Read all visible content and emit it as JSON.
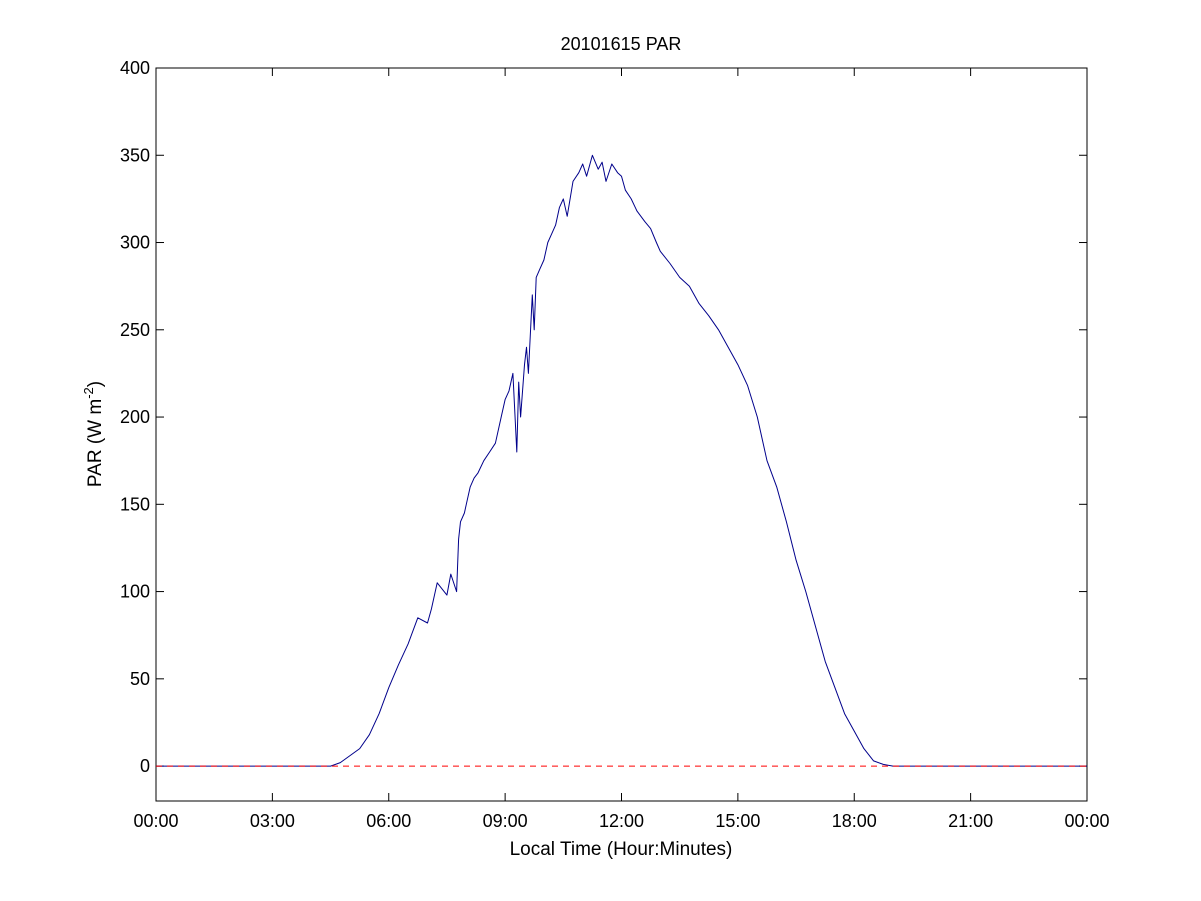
{
  "chart_data": {
    "type": "line",
    "title": "20101615 PAR",
    "xlabel": "Local Time (Hour:Minutes)",
    "ylabel": {
      "prefix": "PAR (W m",
      "sup": "-2",
      "suffix": ")"
    },
    "xlim": [
      0,
      24
    ],
    "ylim": [
      -20,
      400
    ],
    "x_ticks": [
      {
        "value": 0,
        "label": "00:00"
      },
      {
        "value": 3,
        "label": "03:00"
      },
      {
        "value": 6,
        "label": "06:00"
      },
      {
        "value": 9,
        "label": "09:00"
      },
      {
        "value": 12,
        "label": "12:00"
      },
      {
        "value": 15,
        "label": "15:00"
      },
      {
        "value": 18,
        "label": "18:00"
      },
      {
        "value": 21,
        "label": "21:00"
      },
      {
        "value": 24,
        "label": "00:00"
      }
    ],
    "y_ticks": [
      0,
      50,
      100,
      150,
      200,
      250,
      300,
      350,
      400
    ],
    "grid": false,
    "series": [
      {
        "color": "#00008b",
        "x": [
          0,
          4.5,
          4.75,
          5.0,
          5.25,
          5.5,
          5.75,
          6.0,
          6.25,
          6.5,
          6.75,
          7.0,
          7.1,
          7.25,
          7.5,
          7.6,
          7.75,
          7.8,
          7.85,
          7.95,
          8.0,
          8.1,
          8.2,
          8.3,
          8.45,
          8.6,
          8.75,
          8.9,
          9.0,
          9.1,
          9.2,
          9.3,
          9.35,
          9.4,
          9.5,
          9.55,
          9.6,
          9.7,
          9.75,
          9.8,
          9.9,
          10.0,
          10.1,
          10.2,
          10.3,
          10.4,
          10.5,
          10.6,
          10.75,
          10.9,
          11.0,
          11.1,
          11.25,
          11.4,
          11.5,
          11.6,
          11.75,
          11.9,
          12.0,
          12.1,
          12.25,
          12.4,
          12.5,
          12.6,
          12.75,
          12.9,
          13.0,
          13.25,
          13.5,
          13.75,
          14.0,
          14.25,
          14.5,
          14.75,
          15.0,
          15.25,
          15.5,
          15.75,
          16.0,
          16.25,
          16.5,
          16.75,
          17.0,
          17.25,
          17.5,
          17.75,
          18.0,
          18.25,
          18.5,
          18.75,
          19.0,
          19.25,
          19.5,
          20.0,
          24.0
        ],
        "values": [
          0,
          0,
          2,
          6,
          10,
          18,
          30,
          45,
          58,
          70,
          85,
          82,
          90,
          105,
          98,
          110,
          100,
          130,
          140,
          145,
          150,
          160,
          165,
          168,
          175,
          180,
          185,
          200,
          210,
          215,
          225,
          180,
          220,
          200,
          230,
          240,
          225,
          270,
          250,
          280,
          285,
          290,
          300,
          305,
          310,
          320,
          325,
          315,
          335,
          340,
          345,
          338,
          350,
          342,
          346,
          335,
          345,
          340,
          338,
          330,
          325,
          318,
          315,
          312,
          308,
          300,
          295,
          288,
          280,
          275,
          265,
          258,
          250,
          240,
          230,
          218,
          200,
          175,
          160,
          140,
          118,
          100,
          80,
          60,
          45,
          30,
          20,
          10,
          3,
          1,
          0,
          0,
          0,
          0,
          0
        ]
      },
      {
        "color": "#ff0000",
        "dashed": true,
        "x": [
          0,
          24
        ],
        "values": [
          0,
          0
        ]
      }
    ]
  }
}
